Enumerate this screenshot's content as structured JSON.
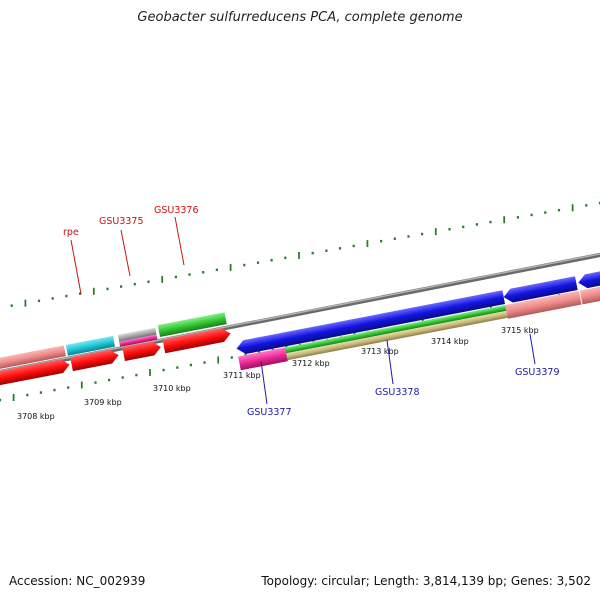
{
  "title": "Geobacter sulfurreducens PCA, complete genome",
  "footer": {
    "accession": "Accession: NC_002939",
    "summary": "Topology: circular; Length: 3,814,139 bp; Genes: 3,502"
  },
  "scale": {
    "ticks": [
      "3708 kbp",
      "3709 kbp",
      "3710 kbp",
      "3711 kbp",
      "3712 kbp",
      "3713 kbp",
      "3714 kbp",
      "3715 kbp"
    ]
  },
  "colors": {
    "backbone": "#8c8c8c",
    "tick": "#2e7d2e",
    "label_top": "#cc1111",
    "label_bottom": "#1a1aaa",
    "red": "#ff1010",
    "salmon": "#ef8a8a",
    "cyan": "#20c8d8",
    "gray": "#a8a8a8",
    "magenta": "#ee2a9a",
    "green": "#33c833",
    "blue": "#1414e0",
    "khaki": "#c8b878"
  },
  "gene_labels": {
    "top": [
      "rpe",
      "GSU3375",
      "GSU3376"
    ],
    "bottom": [
      "GSU3377",
      "GSU3378",
      "GSU3379"
    ]
  }
}
